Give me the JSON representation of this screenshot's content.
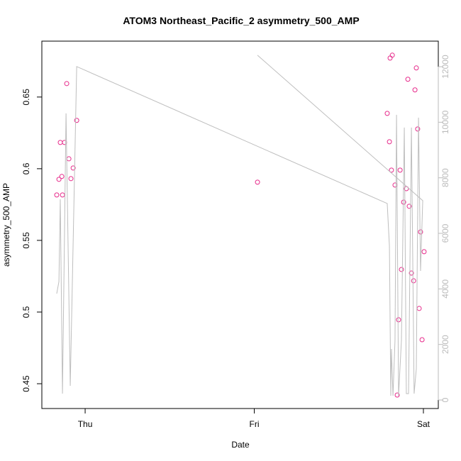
{
  "chart_data": {
    "type": "scatter",
    "title": "ATOM3 Northeast_Pacific_2 asymmetry_500_AMP",
    "x_label": "Date",
    "y_label": "asymmetry_500_AMP",
    "xlim": [
      -0.256,
      2.088
    ],
    "xticks": [
      {
        "value": 0,
        "label": "Thu"
      },
      {
        "value": 1,
        "label": "Fri"
      },
      {
        "value": 2,
        "label": "Sat"
      }
    ],
    "ylim": [
      0.4327,
      0.689
    ],
    "yticks": [
      0.45,
      0.5,
      0.55,
      0.6,
      0.65
    ],
    "y2lim": [
      -306,
      12920
    ],
    "y2ticks": [
      0,
      2000,
      4000,
      6000,
      8000,
      10000,
      12000
    ],
    "series": [
      {
        "color": "#e7298a",
        "x": [
          -0.168,
          -0.155,
          -0.147,
          -0.138,
          -0.134,
          -0.122,
          -0.109,
          -0.096,
          -0.084,
          -0.071,
          -0.05,
          1.019,
          1.786,
          1.799,
          1.803,
          1.816,
          1.811,
          1.832,
          1.845,
          1.853,
          1.862,
          1.87,
          1.883,
          1.899,
          1.908,
          1.916,
          1.929,
          1.942,
          1.95,
          1.958,
          1.966,
          1.975,
          1.983,
          1.992,
          2.004
        ],
        "values": [
          0.5817,
          0.5926,
          0.6183,
          0.5946,
          0.5817,
          0.6183,
          0.6594,
          0.6069,
          0.5931,
          0.6005,
          0.6337,
          0.5906,
          0.6386,
          0.6188,
          0.6772,
          0.6792,
          0.599,
          0.5886,
          0.4421,
          0.4946,
          0.599,
          0.5297,
          0.5767,
          0.5861,
          0.6624,
          0.5738,
          0.5272,
          0.5218,
          0.655,
          0.6703,
          0.6277,
          0.5025,
          0.5559,
          0.4807,
          0.5421
        ]
      },
      {
        "color": "#bebebe",
        "axis": "y2",
        "line": true,
        "x": [
          -0.168,
          -0.155,
          -0.147,
          -0.134,
          -0.113,
          -0.088,
          -0.05,
          1.786,
          1.799,
          1.807,
          1.811,
          1.82,
          1.832,
          1.841,
          1.853,
          1.87,
          1.887,
          1.899,
          1.912,
          1.929,
          1.945,
          1.958,
          1.971,
          1.983,
          1.996,
          1.019
        ],
        "values": [
          3831,
          4266,
          7229,
          230,
          10319,
          511,
          12005,
          7075,
          5543,
          153,
          1839,
          153,
          2146,
          10268,
          153,
          2146,
          9808,
          230,
          230,
          9808,
          230,
          1124,
          10166,
          4649,
          7178,
          12414
        ]
      }
    ]
  }
}
